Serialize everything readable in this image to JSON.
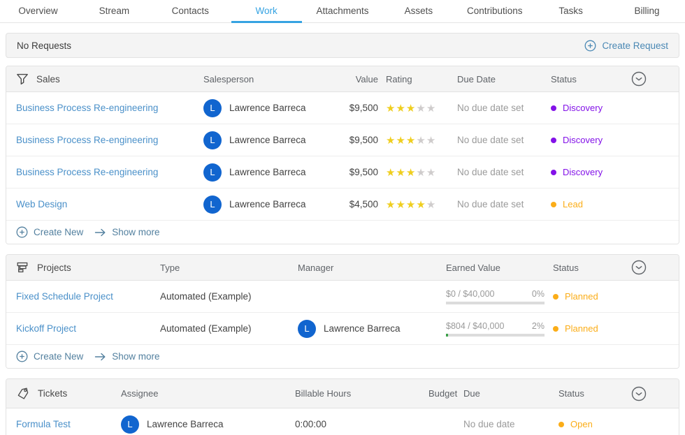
{
  "tabs": {
    "items": [
      {
        "label": "Overview"
      },
      {
        "label": "Stream"
      },
      {
        "label": "Contacts"
      },
      {
        "label": "Work"
      },
      {
        "label": "Attachments"
      },
      {
        "label": "Assets"
      },
      {
        "label": "Contributions"
      },
      {
        "label": "Tasks"
      },
      {
        "label": "Billing"
      }
    ],
    "active": "Work"
  },
  "requests": {
    "empty_text": "No Requests",
    "create_label": "Create Request"
  },
  "sales": {
    "title": "Sales",
    "columns": {
      "salesperson": "Salesperson",
      "value": "Value",
      "rating": "Rating",
      "due_date": "Due Date",
      "status": "Status"
    },
    "rows": [
      {
        "name": "Business Process Re-engineering",
        "salesperson": "Lawrence Barreca",
        "avatar_initial": "L",
        "value": "$9,500",
        "rating": 3,
        "due": "No due date set",
        "status": "Discovery",
        "status_color": "#8312e8"
      },
      {
        "name": "Business Process Re-engineering",
        "salesperson": "Lawrence Barreca",
        "avatar_initial": "L",
        "value": "$9,500",
        "rating": 3,
        "due": "No due date set",
        "status": "Discovery",
        "status_color": "#8312e8"
      },
      {
        "name": "Business Process Re-engineering",
        "salesperson": "Lawrence Barreca",
        "avatar_initial": "L",
        "value": "$9,500",
        "rating": 3,
        "due": "No due date set",
        "status": "Discovery",
        "status_color": "#8312e8"
      },
      {
        "name": "Web Design",
        "salesperson": "Lawrence Barreca",
        "avatar_initial": "L",
        "value": "$4,500",
        "rating": 4,
        "due": "No due date set",
        "status": "Lead",
        "status_color": "#fbad18"
      }
    ],
    "footer": {
      "create_label": "Create New",
      "show_more_label": "Show more"
    }
  },
  "projects": {
    "title": "Projects",
    "columns": {
      "type": "Type",
      "manager": "Manager",
      "earned_value": "Earned Value",
      "status": "Status"
    },
    "rows": [
      {
        "name": "Fixed Schedule Project",
        "type": "Automated (Example)",
        "manager": "",
        "earned": "$0 / $40,000",
        "percent": "0%",
        "progress": 0,
        "status": "Planned",
        "status_color": "#fbad18"
      },
      {
        "name": "Kickoff Project",
        "type": "Automated (Example)",
        "manager": "Lawrence Barreca",
        "avatar_initial": "L",
        "earned": "$804 / $40,000",
        "percent": "2%",
        "progress": 2,
        "status": "Planned",
        "status_color": "#fbad18"
      }
    ],
    "footer": {
      "create_label": "Create New",
      "show_more_label": "Show more"
    }
  },
  "tickets": {
    "title": "Tickets",
    "columns": {
      "assignee": "Assignee",
      "billable_hours": "Billable Hours",
      "budget": "Budget",
      "due": "Due",
      "status": "Status"
    },
    "rows": [
      {
        "name": "Formula Test",
        "assignee": "Lawrence Barreca",
        "avatar_initial": "L",
        "billable_hours": "0:00:00",
        "budget": "",
        "due": "No due date",
        "status": "Open",
        "status_color": "#fbad18"
      }
    ]
  },
  "colors": {
    "accent_tab": "#36a3e2",
    "item_link": "#4a90c9",
    "action_link": "#53809f",
    "create_request_link": "#4a88b4",
    "avatar_bg": "#1165cf",
    "star_filled": "#efce1f",
    "star_empty": "#cfcccc",
    "progress_track": "#dcdcdc",
    "progress_fill": "#3da04a",
    "status_discovery": "#8312e8",
    "status_lead": "#fbad18",
    "status_planned": "#fbad18",
    "status_open": "#fbad18"
  }
}
